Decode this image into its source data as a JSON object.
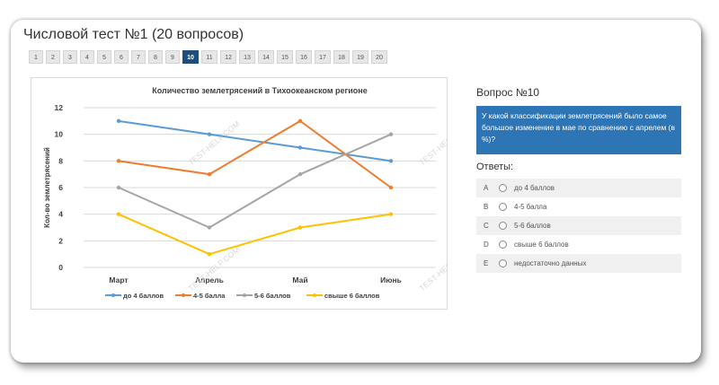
{
  "title": "Числовой тест №1 (20 вопросов)",
  "pager": {
    "pages": [
      "1",
      "2",
      "3",
      "4",
      "5",
      "6",
      "7",
      "8",
      "9",
      "10",
      "11",
      "12",
      "13",
      "14",
      "15",
      "16",
      "17",
      "18",
      "19",
      "20"
    ],
    "active": "10"
  },
  "chart_data": {
    "type": "line",
    "title": "Количество землетрясений в Тихоокеанском регионе",
    "xlabel": "",
    "ylabel": "Кол-во землетрясений",
    "categories": [
      "Март",
      "Апрель",
      "Май",
      "Июнь"
    ],
    "ylim": [
      0,
      12
    ],
    "yticks": [
      0,
      2,
      4,
      6,
      8,
      10,
      12
    ],
    "grid": true,
    "legend": "bottom",
    "series": [
      {
        "name": "до 4 баллов",
        "values": [
          11,
          10,
          9,
          8
        ],
        "color": "#5b9bd5"
      },
      {
        "name": "4-5 балла",
        "values": [
          8,
          7,
          11,
          6
        ],
        "color": "#ed7d31"
      },
      {
        "name": "5-6 баллов",
        "values": [
          6,
          3,
          7,
          10
        ],
        "color": "#a5a5a5"
      },
      {
        "name": "свыше 6 баллов",
        "values": [
          4,
          1,
          3,
          4
        ],
        "color": "#ffc000"
      }
    ],
    "watermark": "TEST-HELP.COM"
  },
  "question": {
    "title": "Вопрос №10",
    "text": "У какой классификации землетрясений было самое большое изменение в мае по сравнению с апрелем (в %)?"
  },
  "answers": {
    "title": "Ответы:",
    "items": [
      {
        "letter": "A",
        "text": "до 4 баллов"
      },
      {
        "letter": "B",
        "text": "4-5 балла"
      },
      {
        "letter": "C",
        "text": "5-6 баллов"
      },
      {
        "letter": "D",
        "text": "свыше 6 баллов"
      },
      {
        "letter": "E",
        "text": "недостаточно данных"
      }
    ]
  }
}
